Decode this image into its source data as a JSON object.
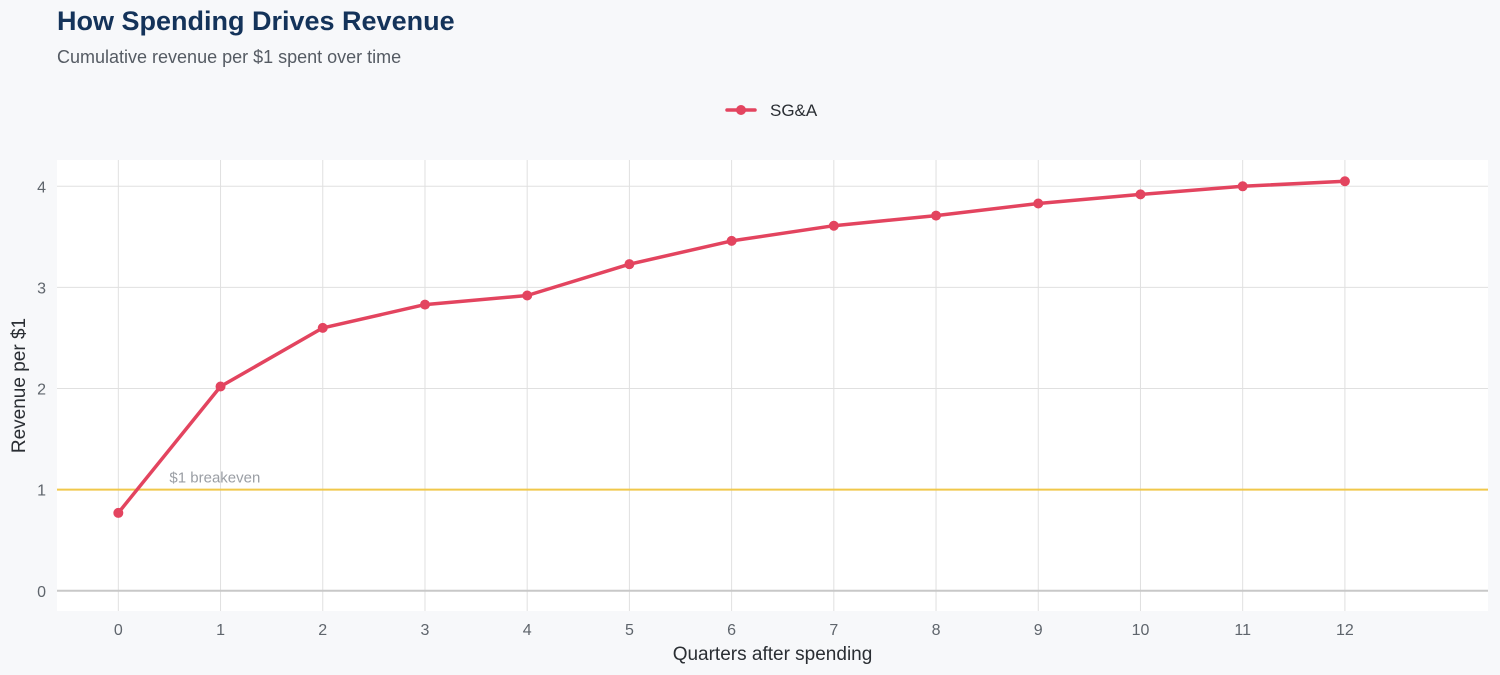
{
  "chart_data": {
    "type": "line",
    "title": "How Spending Drives Revenue",
    "subtitle": "Cumulative revenue per $1 spent over time",
    "xlabel": "Quarters after spending",
    "ylabel": "Revenue per $1",
    "x": [
      0,
      1,
      2,
      3,
      4,
      5,
      6,
      7,
      8,
      9,
      10,
      11,
      12
    ],
    "xlim": [
      -0.6,
      13.4
    ],
    "ylim": [
      -0.2,
      4.26
    ],
    "xticks": [
      0,
      1,
      2,
      3,
      4,
      5,
      6,
      7,
      8,
      9,
      10,
      11,
      12
    ],
    "yticks": [
      0,
      1,
      2,
      3,
      4
    ],
    "series": [
      {
        "name": "SG&A",
        "color": "#e3445f",
        "values": [
          0.77,
          2.02,
          2.6,
          2.83,
          2.92,
          3.23,
          3.46,
          3.61,
          3.71,
          3.83,
          3.92,
          4.0,
          4.05
        ]
      }
    ],
    "reference_line": {
      "y": 1,
      "label": "$1 breakeven",
      "color": "#f0c84a"
    },
    "grid": true,
    "legend_position": "top-center",
    "colors": {
      "background": "#f7f8fa",
      "panel": "#ffffff",
      "grid": "#e0e0e0",
      "zero_line": "#c8c8c8"
    }
  }
}
